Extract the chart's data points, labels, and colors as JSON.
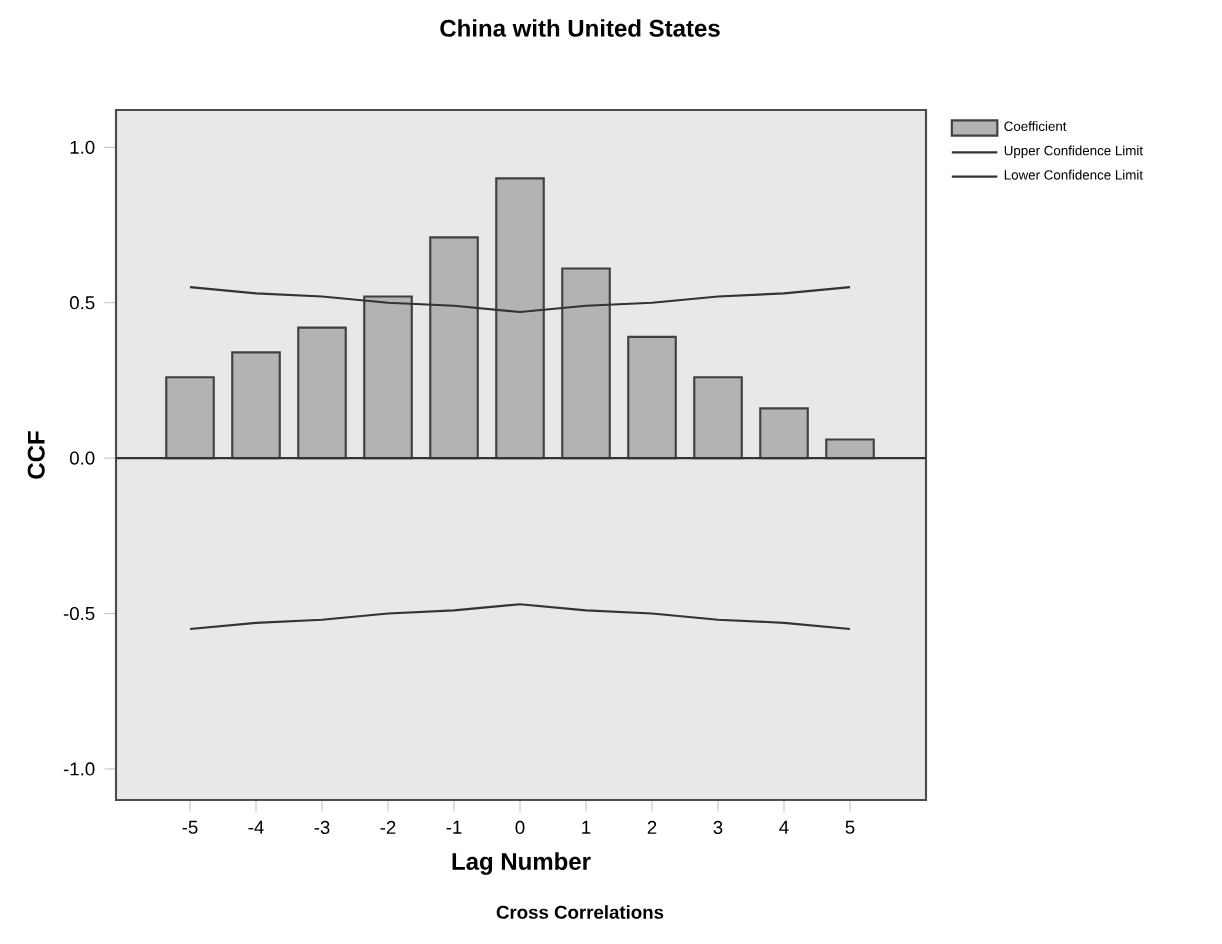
{
  "chart_data": {
    "type": "bar",
    "title": "China with United States",
    "xlabel": "Lag Number",
    "ylabel": "CCF",
    "annotations": [
      "Cross Correlations"
    ],
    "categories": [
      "-5",
      "-4",
      "-3",
      "-2",
      "-1",
      "0",
      "1",
      "2",
      "3",
      "4",
      "5"
    ],
    "series": [
      {
        "name": "Coefficient",
        "color": "#b3b3b3",
        "values": [
          0.26,
          0.34,
          0.42,
          0.52,
          0.71,
          0.9,
          0.61,
          0.39,
          0.26,
          0.16,
          0.06
        ]
      },
      {
        "name": "Upper Confidence Limit",
        "type": "line",
        "color": "#333333",
        "values": [
          0.55,
          0.53,
          0.52,
          0.5,
          0.49,
          0.47,
          0.49,
          0.5,
          0.52,
          0.53,
          0.55
        ]
      },
      {
        "name": "Lower Confidence Limit",
        "type": "line",
        "color": "#333333",
        "values": [
          -0.55,
          -0.53,
          -0.52,
          -0.5,
          -0.49,
          -0.47,
          -0.49,
          -0.5,
          -0.52,
          -0.53,
          -0.55
        ]
      }
    ],
    "ylim": [
      -1.1,
      1.12
    ],
    "yticks": [
      {
        "value": -1,
        "label": "-1.0"
      },
      {
        "value": -0.5,
        "label": "-0.5"
      },
      {
        "value": 0,
        "label": "0.0"
      },
      {
        "value": 0.5,
        "label": "0.5"
      },
      {
        "value": 1,
        "label": "1.0"
      }
    ],
    "legend": "top right",
    "marker": "none"
  }
}
